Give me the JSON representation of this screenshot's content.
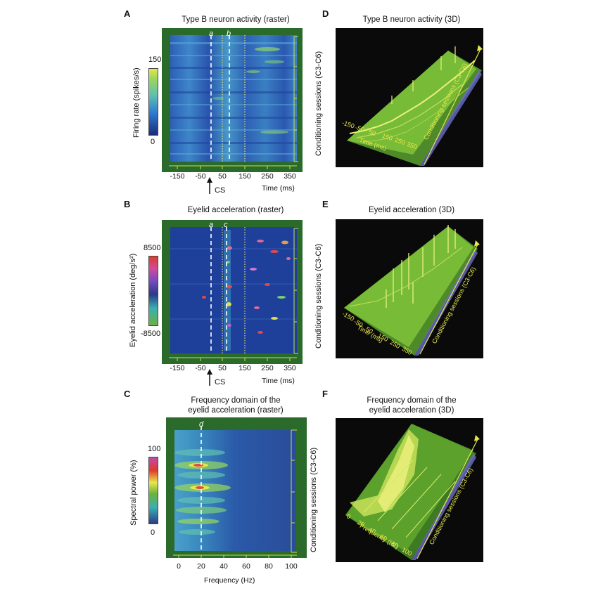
{
  "panels": {
    "A": {
      "letter": "A",
      "title": "Type B neuron activity (raster)",
      "colorbar_label": "Firing rate (spikes/s)",
      "colorbar_max": "150",
      "colorbar_min": "0",
      "x_ticks": [
        "-150",
        "-50",
        "50",
        "150",
        "250",
        "350"
      ],
      "x_label": "Time (ms)",
      "cs_label": "CS",
      "marker_a": "a",
      "marker_b": "b",
      "y_label": "Conditioning sessions (C3-C6)"
    },
    "B": {
      "letter": "B",
      "title": "Eyelid acceleration (raster)",
      "colorbar_label": "Eyelid acceleration (deg/s²)",
      "colorbar_max": "8500",
      "colorbar_min": "-8500",
      "x_ticks": [
        "-150",
        "-50",
        "50",
        "150",
        "250",
        "350"
      ],
      "x_label": "Time (ms)",
      "cs_label": "CS",
      "marker_a": "a",
      "marker_c": "c",
      "y_label": "Conditioning sessions (C3-C6)"
    },
    "C": {
      "letter": "C",
      "title_line1": "Frequency domain of the",
      "title_line2": "eyelid acceleration (raster)",
      "colorbar_label": "Spectral power (%)",
      "colorbar_max": "100",
      "colorbar_min": "0",
      "x_ticks": [
        "0",
        "20",
        "40",
        "60",
        "80",
        "100"
      ],
      "x_label": "Frequency (Hz)",
      "marker_d": "d",
      "y_label": "Conditioning sessions (C3-C6)"
    },
    "D": {
      "letter": "D",
      "title": "Type B neuron activity (3D)",
      "axis_ticks": [
        "-150",
        "-50",
        "50",
        "150",
        "250",
        "350"
      ],
      "axis_label": "Time (ms)",
      "depth_label": "Conditioning sessions (C3-C6)"
    },
    "E": {
      "letter": "E",
      "title": "Eyelid acceleration (3D)",
      "axis_ticks": [
        "-150",
        "-50",
        "50",
        "150",
        "250",
        "350"
      ],
      "axis_label": "Time (ms)",
      "depth_label": "Conditioning sessions (C3-C6)"
    },
    "F": {
      "letter": "F",
      "title_line1": "Frequency domain of the",
      "title_line2": "eyelid acceleration (3D)",
      "axis_ticks": [
        "0",
        "20",
        "40",
        "60",
        "80",
        "100"
      ],
      "axis_label": "Frequency (Hz)",
      "depth_label": "Conditioning sessions (C3-C6)"
    }
  },
  "colors": {
    "raster_background": "#2a6a2a",
    "raster_field": "#1e3f9a",
    "axis_yellow": "#c8e04a",
    "panel_3d_background": "#0a0a0a",
    "surface_green": "#7fc33a",
    "surface_peak": "#e8f07a"
  }
}
